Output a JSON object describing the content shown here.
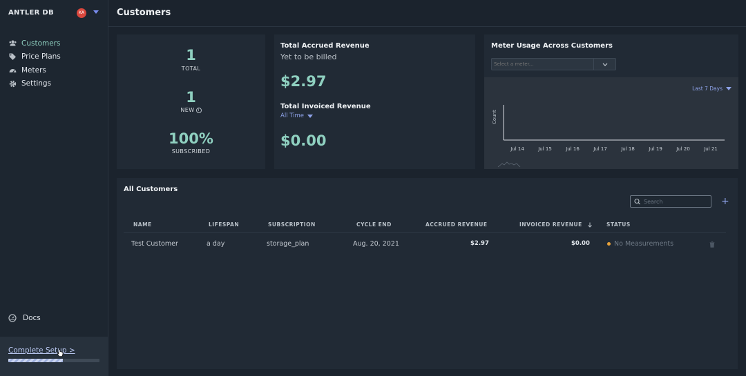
{
  "app": {
    "name": "ANTLER DB",
    "avatar_initials": "KA"
  },
  "sidebar": {
    "items": [
      {
        "label": "Customers",
        "icon": "users-icon",
        "active": true
      },
      {
        "label": "Price Plans",
        "icon": "tags-icon",
        "active": false
      },
      {
        "label": "Meters",
        "icon": "gauge-icon",
        "active": false
      },
      {
        "label": "Settings",
        "icon": "gear-icon",
        "active": false
      }
    ],
    "docs_label": "Docs",
    "setup_label": "Complete Setup >",
    "setup_progress": 0.6
  },
  "header": {
    "title": "Customers"
  },
  "stats": {
    "total_value": "1",
    "total_label": "TOTAL",
    "new_value": "1",
    "new_label": "NEW",
    "subscribed_value": "100%",
    "subscribed_label": "SUBSCRIBED"
  },
  "revenue": {
    "accrued_title": "Total Accrued Revenue",
    "accrued_sub": "Yet to be billed",
    "accrued_amount": "$2.97",
    "invoiced_title": "Total Invoiced Revenue",
    "invoiced_period": "All Time",
    "invoiced_amount": "$0.00"
  },
  "meter": {
    "title": "Meter Usage Across Customers",
    "select_placeholder": "Select a meter...",
    "range_label": "Last 7 Days"
  },
  "chart_data": {
    "type": "line",
    "x": [
      "Jul 14",
      "Jul 15",
      "Jul 16",
      "Jul 17",
      "Jul 18",
      "Jul 19",
      "Jul 20",
      "Jul 21"
    ],
    "series": [],
    "ylabel": "Count",
    "xlabel": ""
  },
  "customers": {
    "title": "All Customers",
    "search_placeholder": "Search",
    "columns": [
      "NAME",
      "LIFESPAN",
      "SUBSCRIPTION",
      "CYCLE END",
      "ACCRUED REVENUE",
      "INVOICED REVENUE",
      "STATUS"
    ],
    "rows": [
      {
        "name": "Test Customer",
        "lifespan": "a day",
        "subscription": "storage_plan",
        "cycle_end": "Aug. 20, 2021",
        "accrued": "$2.97",
        "invoiced": "$0.00",
        "status": "No Measurements",
        "status_color": "#e8a23a"
      }
    ]
  },
  "colors": {
    "accent_green": "#8fd0c0",
    "accent_blue": "#8ea2e8",
    "bg": "#1b232d",
    "card": "#212a35"
  }
}
